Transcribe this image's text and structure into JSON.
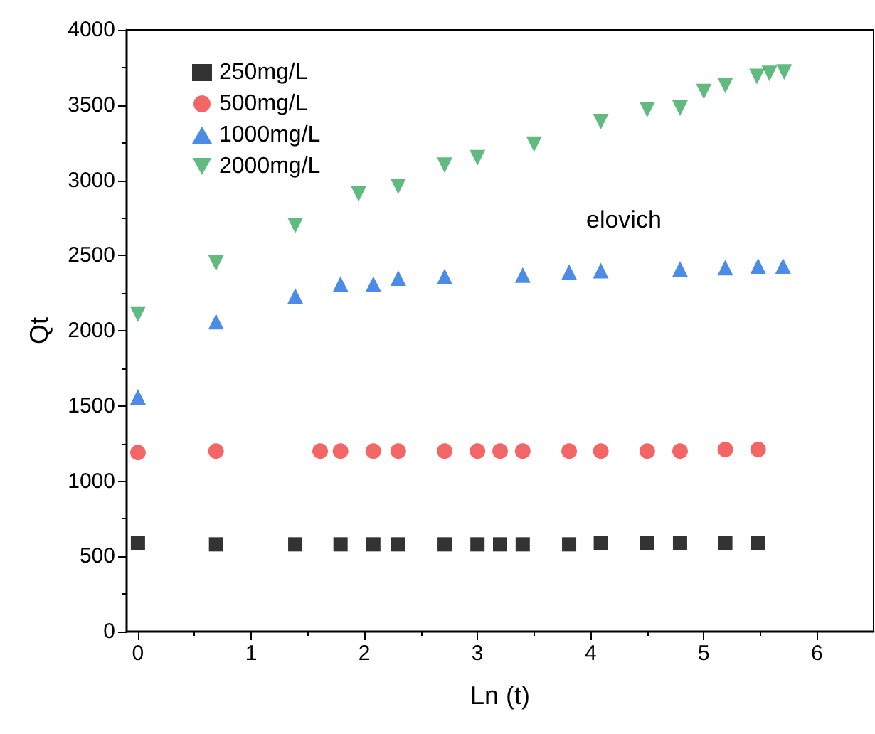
{
  "chart_data": {
    "type": "scatter",
    "xlabel": "Ln (t)",
    "ylabel": "Qt",
    "xlim": [
      -0.1,
      6.5
    ],
    "xticks": [
      0,
      1,
      2,
      3,
      4,
      5,
      6
    ],
    "ylim": [
      0,
      4000
    ],
    "yticks": [
      0,
      500,
      1000,
      1500,
      2000,
      2500,
      3000,
      3500,
      4000
    ],
    "grid": false,
    "legend": "top left",
    "annotations": [
      "elovich"
    ],
    "series": [
      {
        "name": "250mg/L",
        "color": "#000000",
        "marker": "square",
        "x": [
          0,
          0.69,
          1.39,
          1.79,
          2.08,
          2.3,
          2.71,
          3.0,
          3.2,
          3.4,
          3.81,
          4.09,
          4.5,
          4.79,
          5.19,
          5.48
        ],
        "values": [
          590,
          580,
          580,
          580,
          580,
          580,
          580,
          580,
          580,
          580,
          580,
          590,
          590,
          590,
          590,
          590
        ]
      },
      {
        "name": "500mg/L",
        "color": "#ef4040",
        "marker": "circle",
        "x": [
          0,
          0.69,
          1.61,
          1.79,
          2.08,
          2.3,
          2.71,
          3.0,
          3.2,
          3.4,
          3.81,
          4.09,
          4.5,
          4.79,
          5.19,
          5.48
        ],
        "values": [
          1190,
          1200,
          1200,
          1200,
          1200,
          1200,
          1200,
          1200,
          1200,
          1200,
          1200,
          1200,
          1200,
          1200,
          1210,
          1210
        ]
      },
      {
        "name": "1000mg/L",
        "color": "#1f6fe0",
        "marker": "triangle",
        "x": [
          0,
          0.69,
          1.39,
          1.79,
          2.08,
          2.3,
          2.71,
          3.4,
          3.81,
          4.09,
          4.79,
          5.19,
          5.48,
          5.7
        ],
        "values": [
          1560,
          2060,
          2230,
          2310,
          2310,
          2350,
          2360,
          2370,
          2390,
          2400,
          2410,
          2420,
          2430,
          2430
        ]
      },
      {
        "name": "2000mg/L",
        "color": "#3aaa62",
        "marker": "triangle-down",
        "x": [
          0,
          0.69,
          1.39,
          1.95,
          2.3,
          2.71,
          3.0,
          3.5,
          4.09,
          4.5,
          4.79,
          5.0,
          5.19,
          5.47,
          5.58,
          5.71
        ],
        "values": [
          2110,
          2450,
          2700,
          2910,
          2960,
          3100,
          3150,
          3240,
          3390,
          3470,
          3480,
          3590,
          3630,
          3690,
          3710,
          3720
        ]
      }
    ]
  }
}
